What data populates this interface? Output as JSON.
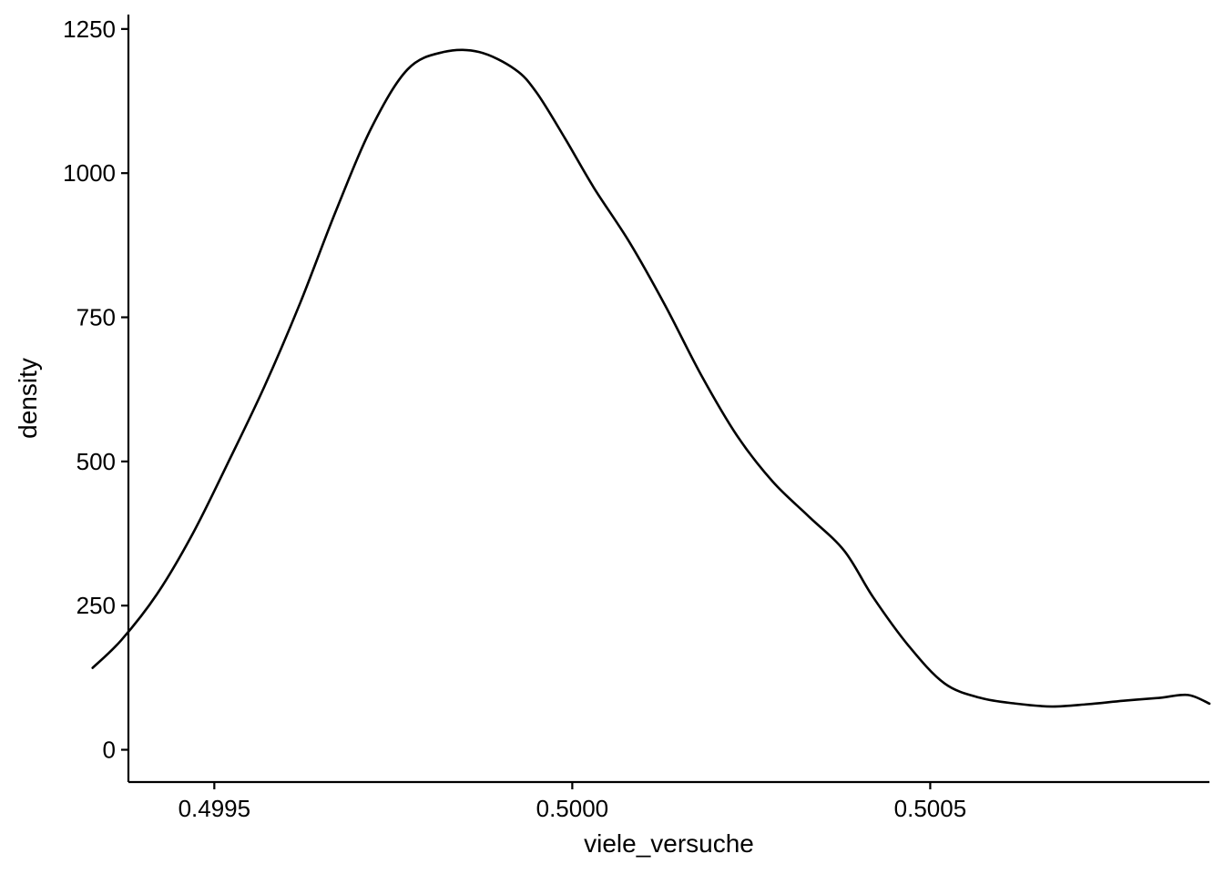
{
  "chart_data": {
    "type": "line",
    "xlabel": "viele_versuche",
    "ylabel": "density",
    "xlim": [
      0.49938,
      0.50089
    ],
    "ylim": [
      -56,
      1275
    ],
    "x_ticks": [
      0.4995,
      0.5,
      0.5005
    ],
    "x_tick_labels": [
      "0.4995",
      "0.5000",
      "0.5005"
    ],
    "y_ticks": [
      0,
      250,
      500,
      750,
      1000,
      1250
    ],
    "y_tick_labels": [
      "0",
      "250",
      "500",
      "750",
      "1000",
      "1250"
    ],
    "grid": false,
    "legend": "none",
    "line_color": "#000000",
    "series": [
      {
        "x": [
          0.49933,
          0.49937,
          0.49942,
          0.49947,
          0.49952,
          0.49957,
          0.49962,
          0.49967,
          0.49972,
          0.49977,
          0.49982,
          0.49987,
          0.49992,
          0.49995,
          0.49999,
          0.50003,
          0.50008,
          0.50013,
          0.50018,
          0.50023,
          0.50028,
          0.50033,
          0.50038,
          0.50042,
          0.50047,
          0.50052,
          0.50057,
          0.50062,
          0.50067,
          0.50072,
          0.50077,
          0.50082,
          0.50086,
          0.50089
        ],
        "y": [
          142,
          190,
          270,
          375,
          500,
          630,
          775,
          935,
          1080,
          1180,
          1210,
          1210,
          1180,
          1140,
          1060,
          975,
          880,
          770,
          650,
          545,
          465,
          405,
          345,
          265,
          180,
          115,
          90,
          80,
          75,
          79,
          85,
          90,
          95,
          80
        ]
      }
    ]
  }
}
